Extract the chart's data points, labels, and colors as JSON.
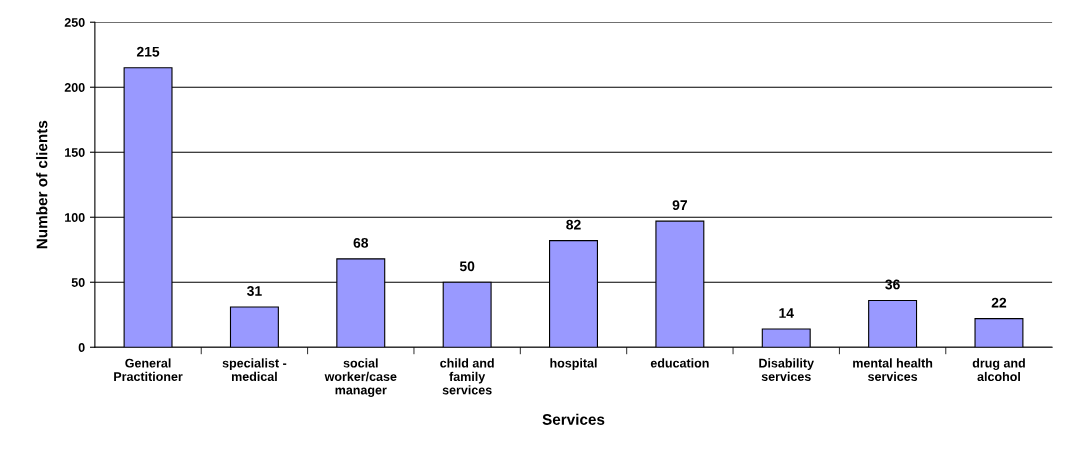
{
  "chart_data": {
    "type": "bar",
    "xlabel": "Services",
    "ylabel": "Number of clients",
    "categories": [
      "General\nPractitioner",
      "specialist -\nmedical",
      "social\nworker/case\nmanager",
      "child and\nfamily\nservices",
      "hospital",
      "education",
      "Disability\nservices",
      "mental health\nservices",
      "drug and\nalcohol"
    ],
    "values": [
      215,
      31,
      68,
      50,
      82,
      97,
      14,
      36,
      22
    ],
    "color": "#9999ff",
    "ylim": [
      0,
      250
    ],
    "yticks": [
      0,
      50,
      100,
      150,
      200,
      250
    ],
    "grid": "y",
    "data_labels": true,
    "legend": false
  }
}
